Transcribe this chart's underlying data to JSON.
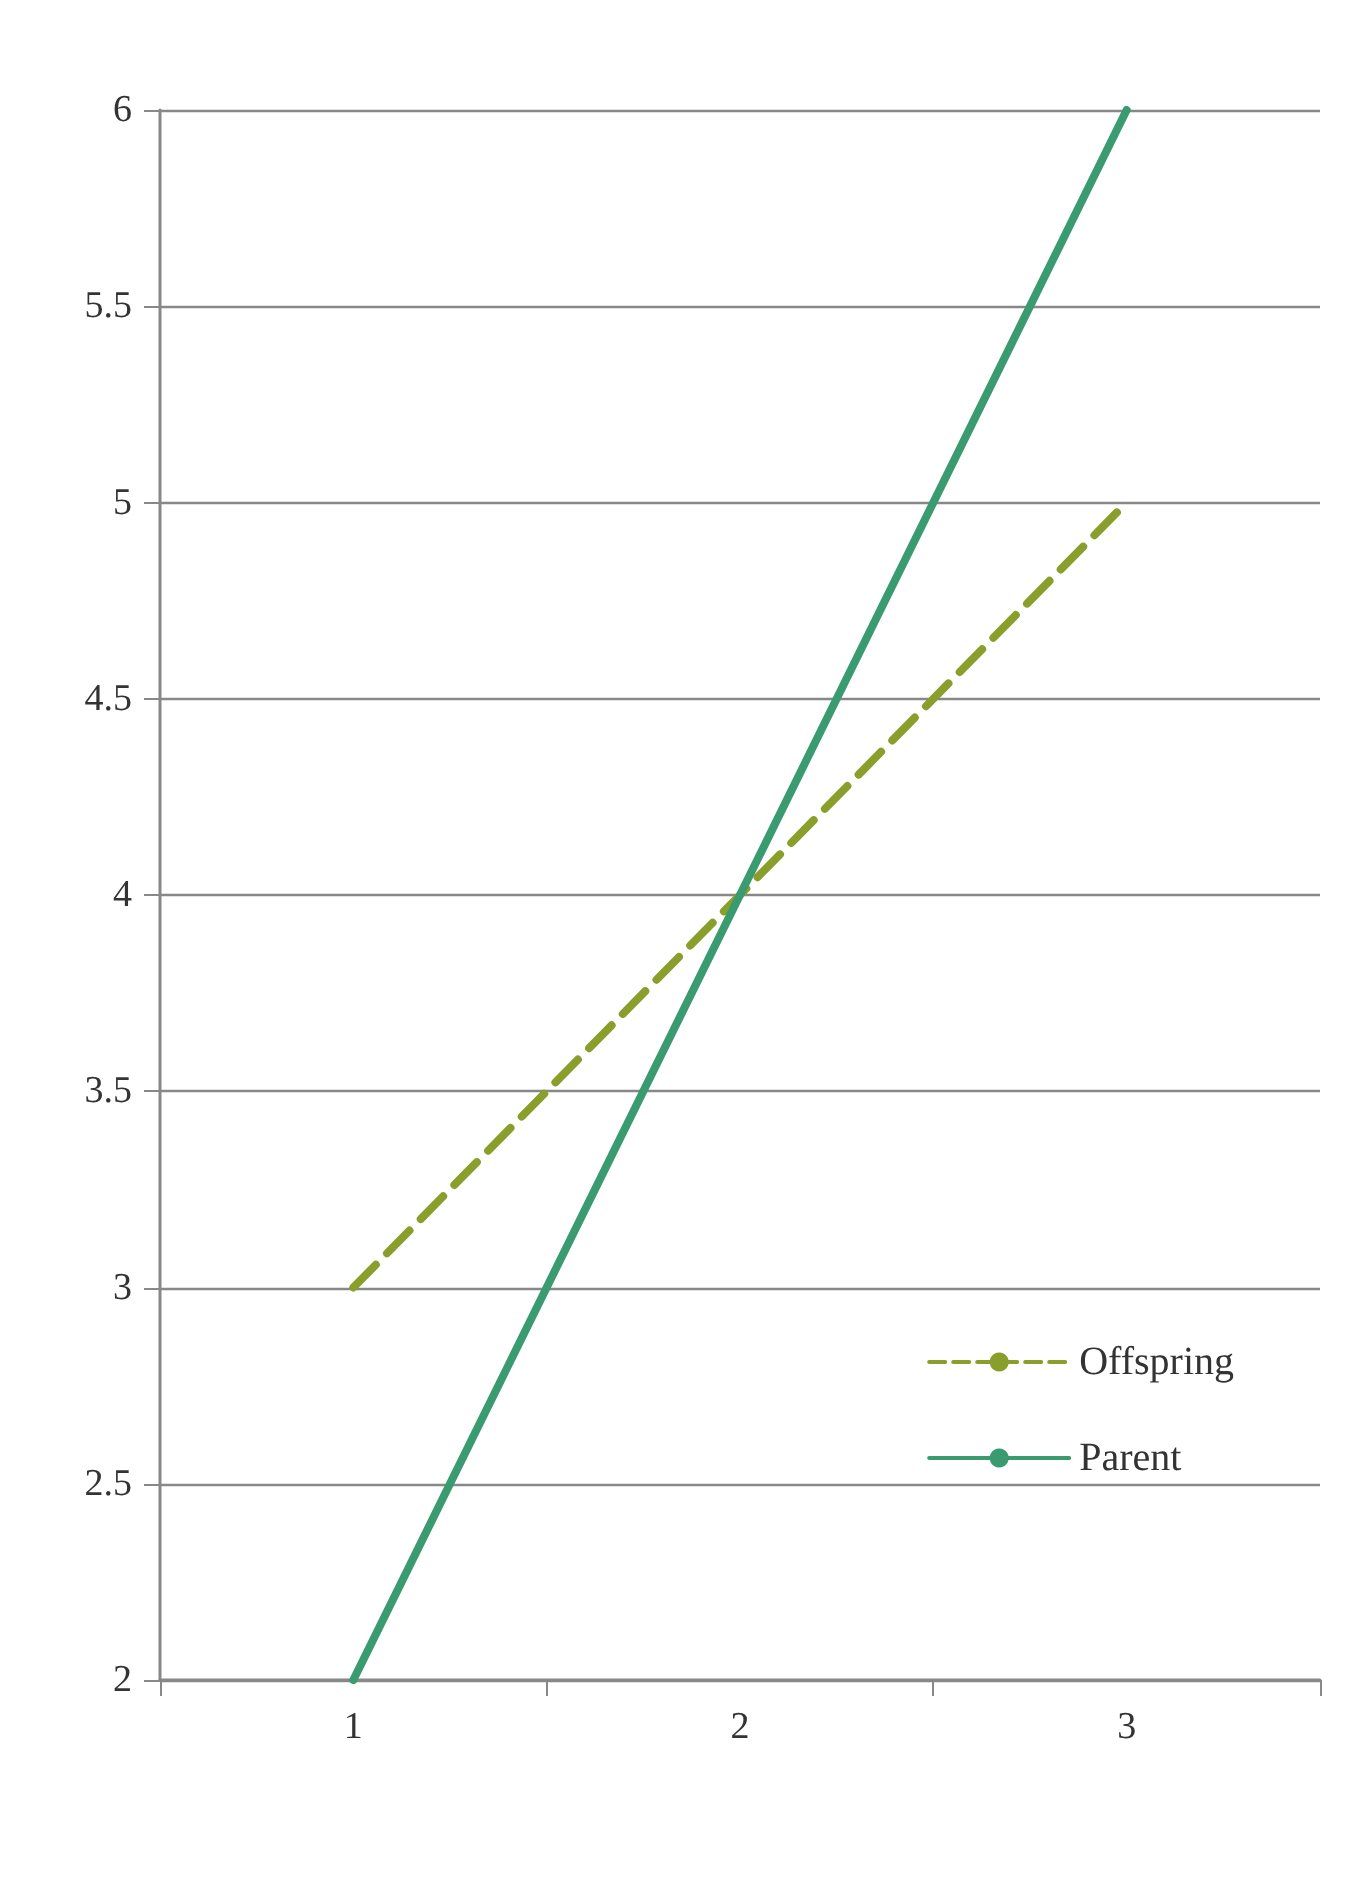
{
  "chart_data": {
    "type": "line",
    "categories": [
      "1",
      "2",
      "3"
    ],
    "series": [
      {
        "name": "Offspring",
        "color": "#8a9e2c",
        "values": [
          3,
          4,
          5
        ],
        "line_style": "dashed"
      },
      {
        "name": "Parent",
        "color": "#3a9a70",
        "values": [
          2,
          4,
          6
        ],
        "line_style": "solid"
      }
    ],
    "ylim": [
      2,
      6
    ],
    "yticks": [
      2,
      2.5,
      3,
      3.5,
      4,
      4.5,
      5,
      5.5,
      6
    ],
    "grid": "y",
    "legend": "bottom right",
    "marker": "none"
  }
}
